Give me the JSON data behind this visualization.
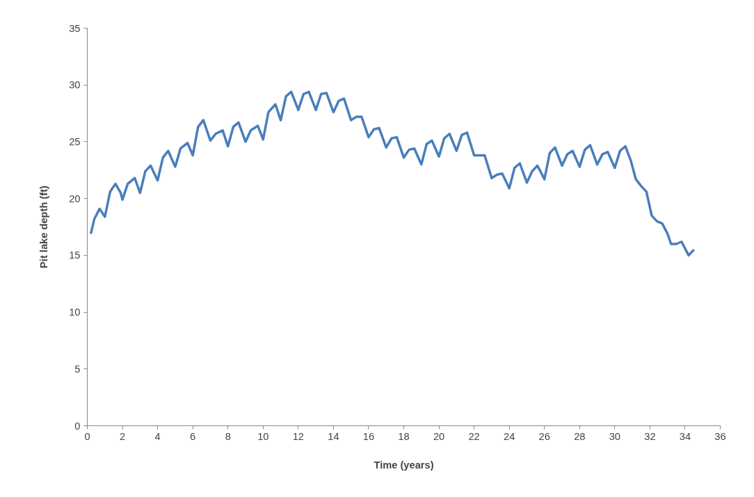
{
  "chart_data": {
    "type": "line",
    "xlabel": "Time (years)",
    "ylabel": "Pit lake depth (ft)",
    "xlim": [
      0,
      36
    ],
    "ylim": [
      0,
      35
    ],
    "xticks": [
      0,
      2,
      4,
      6,
      8,
      10,
      12,
      14,
      16,
      18,
      20,
      22,
      24,
      26,
      28,
      30,
      32,
      34,
      36
    ],
    "yticks": [
      0,
      5,
      10,
      15,
      20,
      25,
      30,
      35
    ],
    "grid": false,
    "marker": "none",
    "line_style": "solid",
    "series": [
      {
        "color": "#4a7ebb",
        "x": [
          0.2,
          0.4,
          0.7,
          1.0,
          1.3,
          1.6,
          1.9,
          2.0,
          2.3,
          2.7,
          3.0,
          3.3,
          3.6,
          4.0,
          4.3,
          4.6,
          5.0,
          5.3,
          5.7,
          6.0,
          6.3,
          6.6,
          7.0,
          7.3,
          7.7,
          8.0,
          8.3,
          8.6,
          9.0,
          9.3,
          9.7,
          10.0,
          10.3,
          10.7,
          11.0,
          11.3,
          11.6,
          12.0,
          12.3,
          12.6,
          13.0,
          13.3,
          13.6,
          14.0,
          14.3,
          14.6,
          15.0,
          15.3,
          15.6,
          16.0,
          16.3,
          16.6,
          17.0,
          17.3,
          17.6,
          18.0,
          18.3,
          18.6,
          19.0,
          19.3,
          19.6,
          20.0,
          20.3,
          20.6,
          21.0,
          21.3,
          21.6,
          22.0,
          22.3,
          22.6,
          23.0,
          23.3,
          23.6,
          24.0,
          24.3,
          24.6,
          25.0,
          25.3,
          25.6,
          26.0,
          26.3,
          26.6,
          27.0,
          27.3,
          27.6,
          28.0,
          28.3,
          28.6,
          29.0,
          29.3,
          29.6,
          30.0,
          30.3,
          30.6,
          30.9,
          31.2,
          31.5,
          31.8,
          32.1,
          32.4,
          32.7,
          33.0,
          33.2,
          33.5,
          33.8,
          34.2,
          34.5
        ],
        "values": [
          16.9,
          18.2,
          19.1,
          18.4,
          20.6,
          21.3,
          20.5,
          19.9,
          21.3,
          21.8,
          20.5,
          22.4,
          22.9,
          21.6,
          23.6,
          24.2,
          22.8,
          24.4,
          24.9,
          23.8,
          26.3,
          26.9,
          25.1,
          25.7,
          26.0,
          24.6,
          26.3,
          26.7,
          25.0,
          26.0,
          26.4,
          25.2,
          27.6,
          28.3,
          26.9,
          29.0,
          29.4,
          27.8,
          29.2,
          29.4,
          27.8,
          29.2,
          29.3,
          27.6,
          28.6,
          28.8,
          26.9,
          27.2,
          27.2,
          25.4,
          26.1,
          26.2,
          24.5,
          25.3,
          25.4,
          23.6,
          24.3,
          24.4,
          23.0,
          24.8,
          25.1,
          23.7,
          25.3,
          25.7,
          24.2,
          25.6,
          25.8,
          23.8,
          23.8,
          23.8,
          21.8,
          22.1,
          22.2,
          20.9,
          22.7,
          23.1,
          21.4,
          22.4,
          22.9,
          21.7,
          24.0,
          24.5,
          22.9,
          23.9,
          24.2,
          22.8,
          24.3,
          24.7,
          23.0,
          23.9,
          24.1,
          22.7,
          24.2,
          24.6,
          23.4,
          21.7,
          21.1,
          20.6,
          18.5,
          18.0,
          17.8,
          16.9,
          16.0,
          16.0,
          16.2,
          15.0,
          15.5
        ]
      }
    ]
  }
}
